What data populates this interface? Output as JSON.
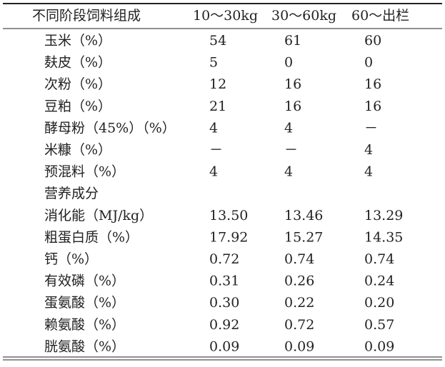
{
  "table": {
    "header": [
      "不同阶段饲料组成",
      "10～30kg",
      "30～60kg",
      "60～出栏"
    ],
    "rows": [
      [
        "玉米（%）",
        "54",
        "61",
        "60"
      ],
      [
        "麸皮（%）",
        "5",
        "0",
        "0"
      ],
      [
        "次粉（%）",
        "12",
        "16",
        "16"
      ],
      [
        "豆粕（%）",
        "21",
        "16",
        "16"
      ],
      [
        "酵母粉（45%）（%）",
        "4",
        "4",
        "－"
      ],
      [
        "米糠（%）",
        "－",
        "－",
        "4"
      ],
      [
        "预混料（%）",
        "4",
        "4",
        "4"
      ],
      [
        "营养成分"
      ],
      [
        "消化能（MJ/kg）",
        "13.50",
        "13.46",
        "13.29"
      ],
      [
        "粗蛋白质（%）",
        "17.92",
        "15.27",
        "14.35"
      ],
      [
        "钙（%）",
        "0.72",
        "0.74",
        "0.74"
      ],
      [
        "有效磷（%）",
        "0.31",
        "0.26",
        "0.24"
      ],
      [
        "蛋氨酸（%）",
        "0.30",
        "0.22",
        "0.20"
      ],
      [
        "赖氨酸（%）",
        "0.92",
        "0.72",
        "0.57"
      ],
      [
        "胱氨酸（%）",
        "0.09",
        "0.09",
        "0.09"
      ]
    ]
  }
}
